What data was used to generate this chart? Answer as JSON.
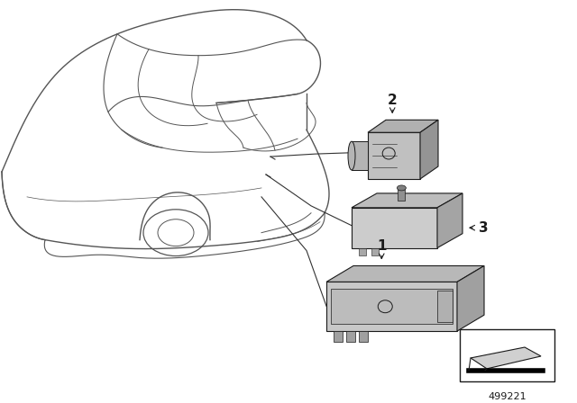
{
  "bg_color": "#ffffff",
  "line_color": "#1a1a1a",
  "part_fill_light": "#c8c8c8",
  "part_fill_mid": "#b0b0b0",
  "part_fill_dark": "#909090",
  "fig_number": "499221",
  "car_line_color": "#555555",
  "leader_color": "#333333"
}
